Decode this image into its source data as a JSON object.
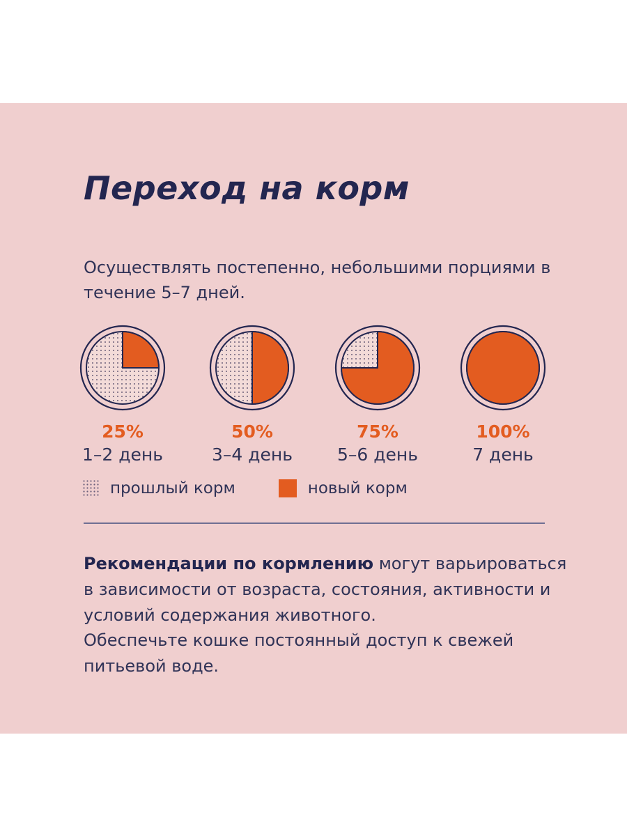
{
  "colors": {
    "accent": "#e35c20",
    "navy": "#232650",
    "background": "#f0cfcf"
  },
  "title": "Переход на корм",
  "intro": "Осуществлять постепенно, небольшими порциями в течение 5–7 дней.",
  "stages": [
    {
      "percent_label": "25%",
      "days": "1–2 день",
      "new_fraction": 0.25
    },
    {
      "percent_label": "50%",
      "days": "3–4 день",
      "new_fraction": 0.5
    },
    {
      "percent_label": "75%",
      "days": "5–6 день",
      "new_fraction": 0.75
    },
    {
      "percent_label": "100%",
      "days": "7 день",
      "new_fraction": 1.0
    }
  ],
  "legend": {
    "old_label": "прошлый корм",
    "old_icon": "dotted-square-icon",
    "new_label": "новый корм",
    "new_icon": "filled-square-icon"
  },
  "recommendation": {
    "bold": "Рекомендации по кормлению",
    "rest": " могут варьироваться в зависимости от возраста, состояния, активности и условий содержания животного."
  },
  "water_note": "Обеспечьте кошке постоянный доступ к свежей питьевой воде."
}
